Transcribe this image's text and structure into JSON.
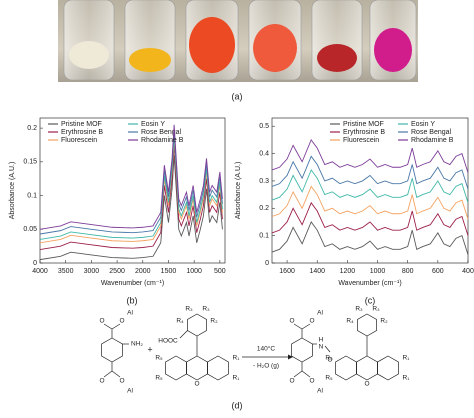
{
  "panel_labels": [
    "(a)",
    "(b)",
    "(c)",
    "(d)"
  ],
  "chart_data": [
    {
      "type": "line",
      "xlabel": "Wavenumber (cm⁻¹)",
      "ylabel": "Absorbance (A.U.)",
      "x": [
        4000,
        3600,
        3400,
        3000,
        2600,
        2200,
        2000,
        1800,
        1650,
        1580,
        1500,
        1430,
        1390,
        1300,
        1250,
        1150,
        1100,
        1020,
        950,
        880,
        820,
        760,
        700,
        650,
        560,
        500,
        450
      ],
      "xlim": [
        4000,
        400
      ],
      "xticks": [
        4000,
        3500,
        3000,
        2500,
        2000,
        1500,
        1000,
        500
      ],
      "ylim": [
        0,
        0.215
      ],
      "yticks": [
        0,
        0.05,
        0.1,
        0.15,
        0.2
      ],
      "legend": "upper left",
      "series": [
        {
          "name": "Pristine MOF",
          "color": "#5a5a5a",
          "values": [
            0.005,
            0.01,
            0.016,
            0.012,
            0.008,
            0.007,
            0.008,
            0.01,
            0.03,
            0.1,
            0.06,
            0.11,
            0.16,
            0.05,
            0.04,
            0.06,
            0.04,
            0.07,
            0.03,
            0.05,
            0.07,
            0.11,
            0.06,
            0.07,
            0.06,
            0.09,
            0.05
          ]
        },
        {
          "name": "Erythrosine B",
          "color": "#9c1f4a",
          "values": [
            0.02,
            0.025,
            0.031,
            0.027,
            0.023,
            0.022,
            0.023,
            0.025,
            0.045,
            0.115,
            0.075,
            0.125,
            0.175,
            0.065,
            0.055,
            0.075,
            0.055,
            0.085,
            0.045,
            0.065,
            0.085,
            0.125,
            0.075,
            0.085,
            0.075,
            0.105,
            0.065
          ]
        },
        {
          "name": "Fluorescein",
          "color": "#f4a261",
          "values": [
            0.03,
            0.035,
            0.041,
            0.037,
            0.033,
            0.032,
            0.033,
            0.035,
            0.055,
            0.125,
            0.085,
            0.135,
            0.185,
            0.075,
            0.065,
            0.085,
            0.065,
            0.095,
            0.055,
            0.075,
            0.095,
            0.135,
            0.085,
            0.095,
            0.085,
            0.115,
            0.075
          ]
        },
        {
          "name": "Eosin Y",
          "color": "#3fb8a8",
          "values": [
            0.035,
            0.04,
            0.046,
            0.042,
            0.038,
            0.037,
            0.038,
            0.04,
            0.06,
            0.13,
            0.09,
            0.14,
            0.19,
            0.08,
            0.07,
            0.09,
            0.07,
            0.1,
            0.06,
            0.08,
            0.1,
            0.14,
            0.09,
            0.1,
            0.09,
            0.12,
            0.08
          ]
        },
        {
          "name": "Rose Bengal",
          "color": "#4a78a8",
          "values": [
            0.043,
            0.048,
            0.054,
            0.05,
            0.046,
            0.045,
            0.046,
            0.048,
            0.068,
            0.138,
            0.098,
            0.148,
            0.198,
            0.088,
            0.078,
            0.098,
            0.078,
            0.108,
            0.068,
            0.088,
            0.108,
            0.148,
            0.098,
            0.108,
            0.098,
            0.128,
            0.088
          ]
        },
        {
          "name": "Rhodamine B",
          "color": "#7d3c98",
          "values": [
            0.05,
            0.055,
            0.061,
            0.057,
            0.053,
            0.052,
            0.053,
            0.055,
            0.075,
            0.145,
            0.105,
            0.155,
            0.205,
            0.095,
            0.085,
            0.105,
            0.085,
            0.115,
            0.075,
            0.095,
            0.115,
            0.155,
            0.105,
            0.115,
            0.105,
            0.135,
            0.095
          ]
        }
      ]
    },
    {
      "type": "line",
      "xlabel": "Wavenumber (cm⁻¹)",
      "ylabel": "Absorbance (A.U.)",
      "x": [
        1700,
        1650,
        1600,
        1560,
        1500,
        1440,
        1400,
        1350,
        1300,
        1250,
        1200,
        1150,
        1100,
        1050,
        1000,
        950,
        900,
        850,
        800,
        770,
        740,
        700,
        650,
        600,
        560,
        520,
        480,
        440,
        400
      ],
      "xlim": [
        1700,
        400
      ],
      "xticks": [
        1600,
        1400,
        1200,
        1000,
        800,
        600,
        400
      ],
      "ylim": [
        0,
        0.53
      ],
      "yticks": [
        0,
        0.1,
        0.2,
        0.3,
        0.4,
        0.5
      ],
      "legend": "upper center",
      "series": [
        {
          "name": "Pristine MOF",
          "color": "#5a5a5a",
          "values": [
            0.04,
            0.05,
            0.08,
            0.13,
            0.07,
            0.15,
            0.12,
            0.06,
            0.07,
            0.05,
            0.06,
            0.05,
            0.06,
            0.08,
            0.05,
            0.06,
            0.05,
            0.05,
            0.06,
            0.12,
            0.05,
            0.06,
            0.07,
            0.11,
            0.07,
            0.06,
            0.09,
            0.1,
            0.03
          ]
        },
        {
          "name": "Erythrosine B",
          "color": "#9c1f4a",
          "values": [
            0.11,
            0.12,
            0.15,
            0.2,
            0.14,
            0.22,
            0.19,
            0.13,
            0.14,
            0.12,
            0.13,
            0.12,
            0.13,
            0.15,
            0.12,
            0.13,
            0.12,
            0.12,
            0.13,
            0.19,
            0.12,
            0.13,
            0.14,
            0.18,
            0.14,
            0.13,
            0.16,
            0.17,
            0.1
          ]
        },
        {
          "name": "Fluorescein",
          "color": "#f4a261",
          "values": [
            0.17,
            0.18,
            0.21,
            0.26,
            0.2,
            0.28,
            0.25,
            0.19,
            0.2,
            0.18,
            0.19,
            0.18,
            0.19,
            0.21,
            0.18,
            0.19,
            0.18,
            0.18,
            0.19,
            0.25,
            0.18,
            0.19,
            0.2,
            0.24,
            0.2,
            0.19,
            0.22,
            0.23,
            0.16
          ]
        },
        {
          "name": "Eosin Y",
          "color": "#3fb8a8",
          "values": [
            0.23,
            0.24,
            0.27,
            0.32,
            0.26,
            0.34,
            0.31,
            0.25,
            0.26,
            0.24,
            0.25,
            0.24,
            0.25,
            0.27,
            0.24,
            0.25,
            0.24,
            0.24,
            0.25,
            0.31,
            0.24,
            0.25,
            0.26,
            0.3,
            0.26,
            0.25,
            0.28,
            0.29,
            0.22
          ]
        },
        {
          "name": "Rose Bengal",
          "color": "#4a78a8",
          "values": [
            0.28,
            0.29,
            0.32,
            0.37,
            0.31,
            0.39,
            0.36,
            0.3,
            0.31,
            0.29,
            0.3,
            0.29,
            0.3,
            0.32,
            0.29,
            0.3,
            0.29,
            0.29,
            0.3,
            0.36,
            0.29,
            0.3,
            0.31,
            0.35,
            0.31,
            0.3,
            0.33,
            0.34,
            0.27
          ]
        },
        {
          "name": "Rhodamine B",
          "color": "#7d3c98",
          "values": [
            0.34,
            0.35,
            0.38,
            0.43,
            0.37,
            0.45,
            0.42,
            0.36,
            0.37,
            0.35,
            0.36,
            0.35,
            0.36,
            0.38,
            0.35,
            0.36,
            0.35,
            0.35,
            0.36,
            0.42,
            0.35,
            0.36,
            0.37,
            0.41,
            0.37,
            0.36,
            0.39,
            0.4,
            0.33
          ]
        }
      ]
    }
  ],
  "scheme": {
    "amine": [
      "O",
      "O",
      "Al",
      "NH₂",
      "O",
      "O",
      "Al"
    ],
    "plus": "+",
    "dye": [
      "R₃",
      "R₃",
      "R₄",
      "R₂",
      "HOOC",
      "R₅",
      "R₁",
      "R₅",
      "O",
      "R₁"
    ],
    "conditions": [
      "140°C",
      "- H₂O (g)"
    ],
    "product": [
      "O",
      "O",
      "Al",
      "H",
      "N",
      "O",
      "O",
      "Al",
      "O",
      "R₃",
      "R₃",
      "R₄",
      "R₂",
      "R₅",
      "R₁",
      "R₅",
      "O",
      "R₁"
    ]
  }
}
